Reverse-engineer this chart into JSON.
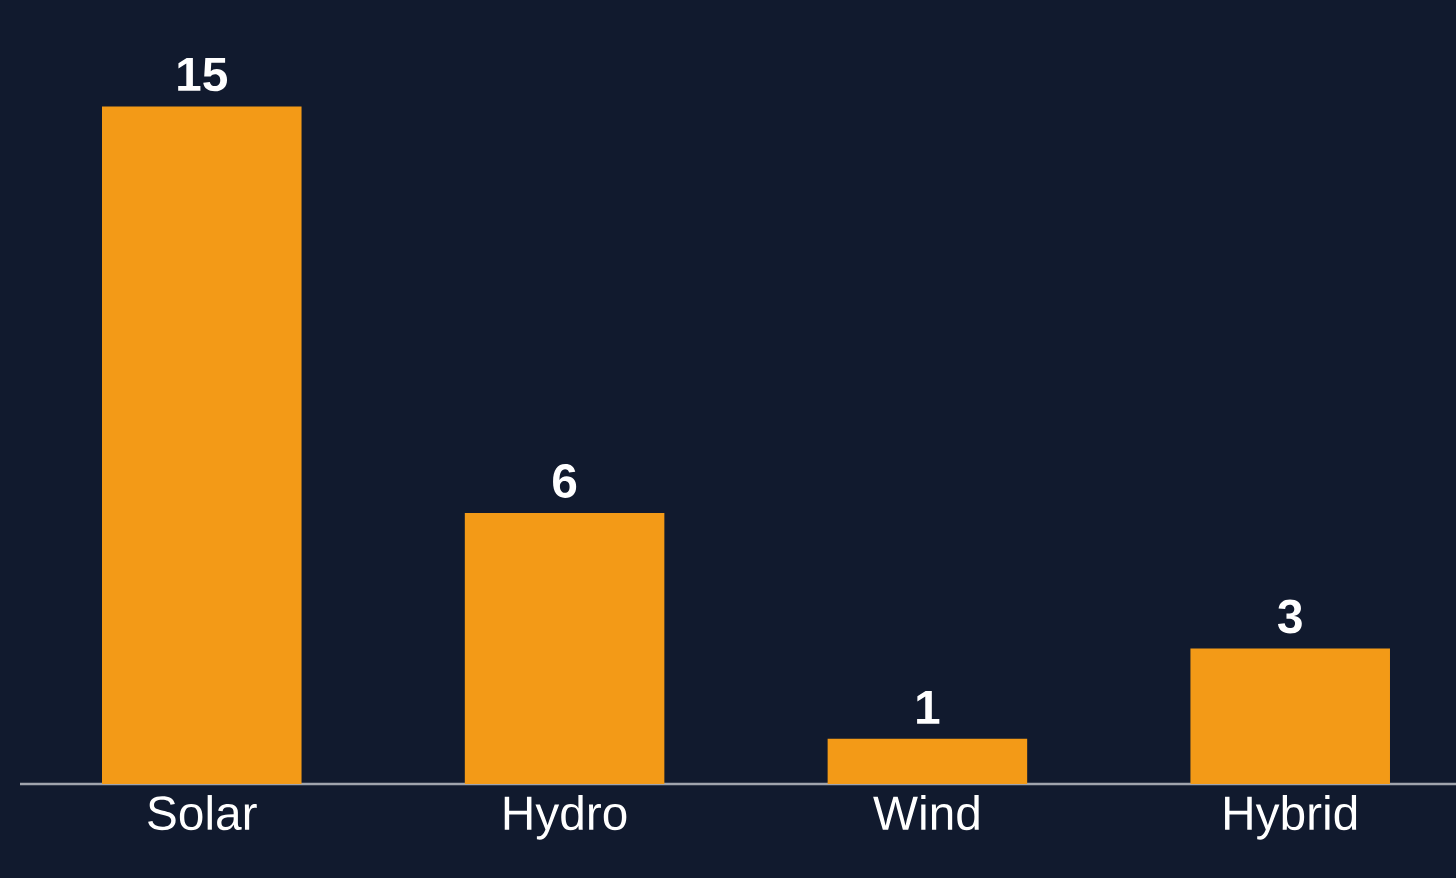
{
  "chart_data": {
    "type": "bar",
    "categories": [
      "Solar",
      "Hydro",
      "Wind",
      "Hybrid"
    ],
    "values": [
      15,
      6,
      1,
      3
    ],
    "color": "#f39a17",
    "data_labels": true
  }
}
